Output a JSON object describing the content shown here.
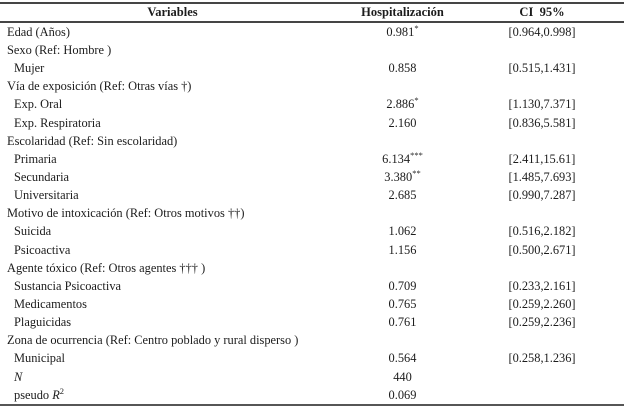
{
  "page": {
    "background": "#ffffff",
    "text_color": "#1c1c1c",
    "rule_color": "#454545"
  },
  "table": {
    "headers": [
      {
        "label": "Variables"
      },
      {
        "label": "Hospitalización"
      },
      {
        "label": "CI  95%"
      }
    ],
    "rows": [
      {
        "label": "Edad (Años)",
        "indent": false,
        "value": "0.981",
        "stars": "*",
        "ci": "[0.964,0.998]"
      },
      {
        "label": "Sexo (Ref: Hombre )",
        "indent": false,
        "value": "",
        "stars": "",
        "ci": ""
      },
      {
        "label": "Mujer",
        "indent": true,
        "value": "0.858",
        "stars": "",
        "ci": "[0.515,1.431]"
      },
      {
        "label": "Vía de exposición (Ref: Otras vías †)",
        "indent": false,
        "value": "",
        "stars": "",
        "ci": ""
      },
      {
        "label": "Exp. Oral",
        "indent": true,
        "value": "2.886",
        "stars": "*",
        "ci": "[1.130,7.371]"
      },
      {
        "label": "Exp. Respiratoria",
        "indent": true,
        "value": "2.160",
        "stars": "",
        "ci": "[0.836,5.581]"
      },
      {
        "label": "Escolaridad (Ref: Sin escolaridad)",
        "indent": false,
        "value": "",
        "stars": "",
        "ci": ""
      },
      {
        "label": "Primaria",
        "indent": true,
        "value": "6.134",
        "stars": "***",
        "ci": "[2.411,15.61]"
      },
      {
        "label": "Secundaria",
        "indent": true,
        "value": "3.380",
        "stars": "**",
        "ci": "[1.485,7.693]"
      },
      {
        "label": "Universitaria",
        "indent": true,
        "value": "2.685",
        "stars": "",
        "ci": "[0.990,7.287]"
      },
      {
        "label": "Motivo de intoxicación (Ref: Otros motivos ††)",
        "indent": false,
        "value": "",
        "stars": "",
        "ci": ""
      },
      {
        "label": "Suicida",
        "indent": true,
        "value": "1.062",
        "stars": "",
        "ci": "[0.516,2.182]"
      },
      {
        "label": "Psicoactiva",
        "indent": true,
        "value": "1.156",
        "stars": "",
        "ci": "[0.500,2.671]"
      },
      {
        "label": "Agente tóxico (Ref: Otros agentes ††† )",
        "indent": false,
        "value": "",
        "stars": "",
        "ci": ""
      },
      {
        "label": "Sustancia Psicoactiva",
        "indent": true,
        "value": "0.709",
        "stars": "",
        "ci": "[0.233,2.161]"
      },
      {
        "label": "Medicamentos",
        "indent": true,
        "value": "0.765",
        "stars": "",
        "ci": "[0.259,2.260]"
      },
      {
        "label": "Plaguicidas",
        "indent": true,
        "value": "0.761",
        "stars": "",
        "ci": "[0.259,2.236]"
      },
      {
        "label": "Zona de ocurrencia (Ref: Centro poblado y rural disperso )",
        "indent": false,
        "value": "",
        "stars": "",
        "ci": ""
      },
      {
        "label": "Municipal",
        "indent": true,
        "value": "0.564",
        "stars": "",
        "ci": "[0.258,1.236]"
      },
      {
        "label": "",
        "italic_label": "N",
        "label_sup": "",
        "indent": true,
        "value": "440",
        "stars": "",
        "ci": ""
      },
      {
        "label": "pseudo ",
        "italic_label": "R",
        "label_sup": "2",
        "indent": true,
        "value": "0.069",
        "stars": "",
        "ci": ""
      }
    ]
  }
}
